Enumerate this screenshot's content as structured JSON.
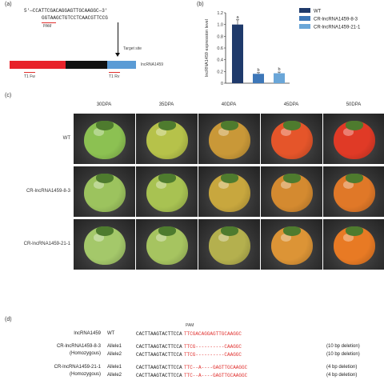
{
  "panel_a": {
    "label": "(a)",
    "seq_top": "5'—CCATTCGACAGGAGTTGCAAGGC—3'",
    "seq_bottom": "GGTAAGCTGTCCTCAACGTTCCG",
    "pam": "PAM",
    "target_site": "Target site",
    "gene": "lncRNA1459",
    "primer_f": "T1 Fw",
    "primer_r": "T1 Rv"
  },
  "panel_b": {
    "label": "(b)"
  },
  "chart_data": {
    "type": "bar",
    "categories": [
      "WT",
      "CR-lncRNA1459-8-3",
      "CR-lncRNA1459-21-1"
    ],
    "values": [
      1.0,
      0.16,
      0.17
    ],
    "errors": [
      0.08,
      0.02,
      0.02
    ],
    "sig_letters": [
      "a",
      "b",
      "b"
    ],
    "colors": [
      "#1f3a6b",
      "#3d77b8",
      "#6aa6d8"
    ],
    "ylabel": "lncRNA1459 expression level",
    "ylim": [
      0,
      1.2
    ],
    "yticks": [
      "0",
      "0.2",
      "0.4",
      "0.6",
      "0.8",
      "1.0",
      "1.2"
    ],
    "legend": [
      "WT",
      "CR-lncRNA1459-8-3",
      "CR-lncRNA1459-21-1"
    ],
    "legend_position": "top-right"
  },
  "panel_c": {
    "label": "(c)",
    "stages": [
      "30DPA",
      "35DPA",
      "40DPA",
      "45DPA",
      "50DPA"
    ],
    "rows": [
      "WT",
      "CR-lncRNA1459-8-3",
      "CR-lncRNA1459-21-1"
    ],
    "colors": [
      [
        "#8cc152",
        "#b6c24a",
        "#c99838",
        "#e5552a",
        "#e03a26"
      ],
      [
        "#9cc35e",
        "#a8c252",
        "#c8a73e",
        "#d48a30",
        "#e07828"
      ],
      [
        "#a4c86a",
        "#a6c460",
        "#b4b04e",
        "#dc9436",
        "#e87a24"
      ]
    ]
  },
  "panel_d": {
    "label": "(d)",
    "pam": "PAM",
    "rows": [
      {
        "line": "lncRNA1459",
        "sub": "",
        "allele": "WT",
        "seq_black": "CACTTAAGTACTTCCA",
        "seq_red": "TTCGACAGGAGTTGCAAGGC",
        "note": ""
      },
      {
        "line": "CR-lncRNA1459-8-3",
        "sub": "(Homozygous)",
        "allele": "Allele1",
        "seq_black": "CACTTAAGTACTTCCA",
        "seq_red": "TTCG----------CAAGGC",
        "note": "(10 bp deletion)"
      },
      {
        "line": "",
        "sub": "",
        "allele": "Allele2",
        "seq_black": "CACTTAAGTACTTCCA",
        "seq_red": "TTCG----------CAAGGC",
        "note": "(10 bp deletion)"
      },
      {
        "line": "CR-lncRNA1459-21-1",
        "sub": "(Homozygous)",
        "allele": "Allele1",
        "seq_black": "CACTTAAGTACTTCCA",
        "seq_red": "TTC--A----GAGTTGCAAGGC",
        "note": "(4 bp deletion)"
      },
      {
        "line": "",
        "sub": "",
        "allele": "Allele2",
        "seq_black": "CACTTAAGTACTTCCA",
        "seq_red": "TTC--A----GAGTTGCAAGGC",
        "note": "(4 bp deletion)"
      }
    ]
  }
}
